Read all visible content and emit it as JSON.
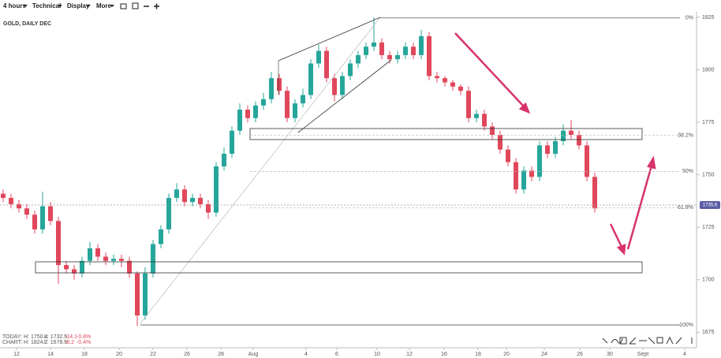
{
  "toolbar": {
    "items": [
      "4 hours",
      "Technical",
      "Display",
      "More"
    ]
  },
  "chart_data": {
    "type": "candlestick",
    "title": "GOLD, DAILY DEC",
    "up_color": "#26a69a",
    "down_color": "#e0475b",
    "xlim": [
      -0.4,
      87.6
    ],
    "ylim": [
      1668,
      1827.6
    ],
    "xticks": [
      {
        "value": 1.7,
        "label": "12"
      },
      {
        "value": 6,
        "label": "14"
      },
      {
        "value": 10.3,
        "label": "18"
      },
      {
        "value": 14.7,
        "label": "20"
      },
      {
        "value": 19,
        "label": "22"
      },
      {
        "value": 23.3,
        "label": "26"
      },
      {
        "value": 27.6,
        "label": "28"
      },
      {
        "value": 31.7,
        "label": "Aug"
      },
      {
        "value": 38.4,
        "label": "4"
      },
      {
        "value": 42.3,
        "label": "6"
      },
      {
        "value": 47.4,
        "label": "10"
      },
      {
        "value": 51.5,
        "label": "12"
      },
      {
        "value": 55.9,
        "label": "16"
      },
      {
        "value": 60.2,
        "label": "18"
      },
      {
        "value": 63.8,
        "label": "20"
      },
      {
        "value": 68.6,
        "label": "24"
      },
      {
        "value": 73.1,
        "label": "26"
      },
      {
        "value": 76.9,
        "label": "30"
      },
      {
        "value": 81.1,
        "label": "Sept"
      },
      {
        "value": 86.4,
        "label": "4"
      }
    ],
    "yticks": [
      1825,
      1800,
      1775,
      1750,
      1725,
      1700,
      1675
    ],
    "open": [
      1741,
      1739,
      1736,
      1734,
      1731,
      1724,
      1735,
      1728,
      1707,
      1705,
      1703,
      1709,
      1715,
      1711,
      1709,
      1710,
      1709,
      1703,
      1683,
      1703,
      1717,
      1724,
      1739,
      1743,
      1737,
      1739,
      1736,
      1732,
      1754,
      1760,
      1771,
      1781,
      1777,
      1783,
      1786,
      1796,
      1790,
      1777,
      1784,
      1788,
      1803,
      1809,
      1796,
      1788,
      1797,
      1803,
      1807,
      1811,
      1813,
      1807,
      1805,
      1807,
      1811,
      1807,
      1816,
      1797,
      1796,
      1794,
      1792,
      1790,
      1777,
      1779,
      1773,
      1769,
      1762,
      1756,
      1743,
      1752,
      1749,
      1764,
      1760,
      1766,
      1771,
      1769,
      1764,
      1749
    ],
    "high": [
      1743,
      1741,
      1738,
      1736,
      1733,
      1742,
      1737,
      1730,
      1709,
      1707,
      1711,
      1718,
      1717,
      1713,
      1712,
      1712,
      1711,
      1704,
      1706,
      1719,
      1726,
      1741,
      1746,
      1745,
      1741,
      1741,
      1738,
      1756,
      1763,
      1773,
      1784,
      1783,
      1785,
      1789,
      1799,
      1798,
      1792,
      1786,
      1791,
      1805,
      1812,
      1811,
      1798,
      1799,
      1805,
      1809,
      1813,
      1825,
      1815,
      1809,
      1809,
      1813,
      1813,
      1819,
      1818,
      1799,
      1797,
      1795,
      1793,
      1792,
      1781,
      1781,
      1775,
      1771,
      1764,
      1758,
      1754,
      1754,
      1766,
      1766,
      1768,
      1774,
      1776,
      1771,
      1766,
      1751
    ],
    "low": [
      1737,
      1734,
      1732,
      1729,
      1722,
      1722,
      1726,
      1698,
      1703,
      1700,
      1701,
      1707,
      1709,
      1707,
      1707,
      1706,
      1701,
      1678,
      1681,
      1701,
      1715,
      1722,
      1737,
      1735,
      1735,
      1734,
      1729,
      1730,
      1752,
      1758,
      1769,
      1775,
      1775,
      1781,
      1784,
      1788,
      1775,
      1775,
      1782,
      1786,
      1801,
      1794,
      1785,
      1786,
      1795,
      1801,
      1805,
      1809,
      1805,
      1803,
      1803,
      1805,
      1805,
      1805,
      1795,
      1794,
      1792,
      1790,
      1788,
      1775,
      1775,
      1771,
      1767,
      1760,
      1754,
      1741,
      1741,
      1747,
      1747,
      1758,
      1758,
      1764,
      1767,
      1762,
      1747,
      1732
    ],
    "close": [
      1739,
      1736,
      1734,
      1731,
      1724,
      1735,
      1728,
      1707,
      1705,
      1703,
      1709,
      1715,
      1711,
      1709,
      1710,
      1709,
      1703,
      1683,
      1703,
      1717,
      1724,
      1739,
      1743,
      1737,
      1739,
      1736,
      1732,
      1754,
      1760,
      1771,
      1781,
      1777,
      1783,
      1786,
      1796,
      1790,
      1777,
      1784,
      1788,
      1803,
      1809,
      1796,
      1788,
      1797,
      1803,
      1807,
      1811,
      1813,
      1807,
      1805,
      1807,
      1811,
      1807,
      1816,
      1797,
      1796,
      1794,
      1792,
      1790,
      1777,
      1779,
      1773,
      1769,
      1762,
      1756,
      1743,
      1752,
      1749,
      1764,
      1760,
      1766,
      1771,
      1769,
      1764,
      1749,
      1734
    ],
    "fib_levels": [
      {
        "level": 0,
        "label": "0%",
        "price": 1824.7
      },
      {
        "level": 38.2,
        "label": "38.2%",
        "price": 1768.85
      },
      {
        "level": 50,
        "label": "50%",
        "price": 1751.6
      },
      {
        "level": 61.8,
        "label": "61.8%",
        "price": 1734.35
      },
      {
        "level": 100,
        "label": "100%",
        "price": 1678.5
      }
    ],
    "last_price": 1735.6,
    "stats": [
      {
        "label": "TODAY:",
        "high": "H: 1750.4",
        "low": "L: 1732.5",
        "change": "-14.1",
        "pct": "-0.8%"
      },
      {
        "label": "CHART:",
        "high": "H: 1824.7",
        "low": "L: 1678.5",
        "change": "-8.2",
        "pct": "-0.4%"
      }
    ]
  }
}
